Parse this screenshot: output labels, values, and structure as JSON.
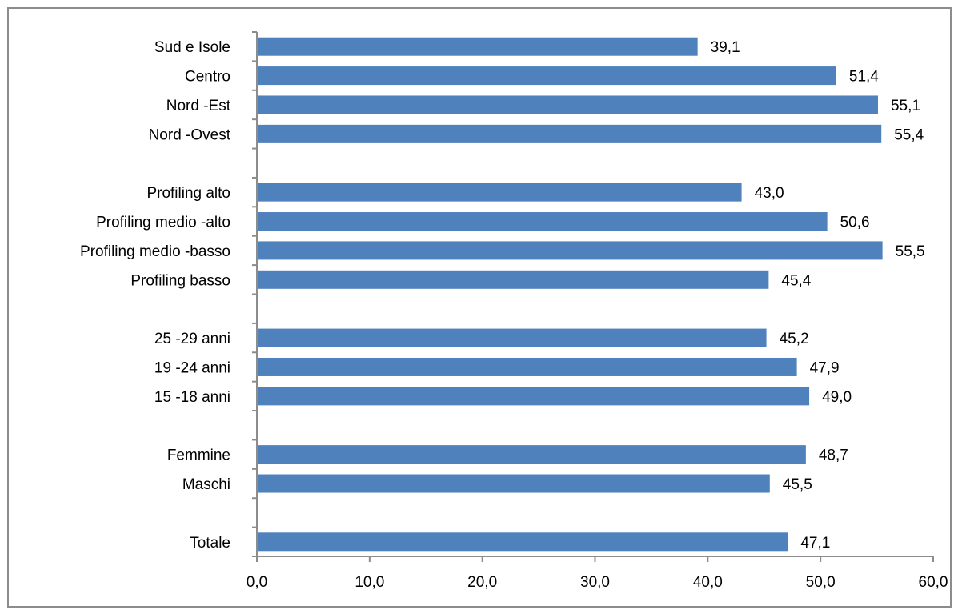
{
  "chart_data": {
    "type": "bar",
    "orientation": "horizontal",
    "title": "",
    "xlabel": "",
    "ylabel": "",
    "xlim": [
      0,
      60
    ],
    "x_ticks": [
      "0,0",
      "10,0",
      "20,0",
      "30,0",
      "40,0",
      "50,0",
      "60,0"
    ],
    "grid": false,
    "legend": "none",
    "bar_color": "#4f81bd",
    "categories": [
      "Sud e Isole",
      "Centro",
      "Nord -Est",
      "Nord -Ovest",
      "",
      "Profiling alto",
      "Profiling medio -alto",
      "Profiling medio -basso",
      "Profiling basso",
      "",
      "25 -29 anni",
      "19 -24 anni",
      "15 -18 anni",
      "",
      "Femmine",
      "Maschi",
      "",
      "Totale"
    ],
    "values": [
      39.1,
      51.4,
      55.1,
      55.4,
      null,
      43.0,
      50.6,
      55.5,
      45.4,
      null,
      45.2,
      47.9,
      49.0,
      null,
      48.7,
      45.5,
      null,
      47.1
    ],
    "value_labels": [
      "39,1",
      "51,4",
      "55,1",
      "55,4",
      "",
      "43,0",
      "50,6",
      "55,5",
      "45,4",
      "",
      "45,2",
      "47,9",
      "49,0",
      "",
      "48,7",
      "45,5",
      "",
      "47,1"
    ]
  }
}
